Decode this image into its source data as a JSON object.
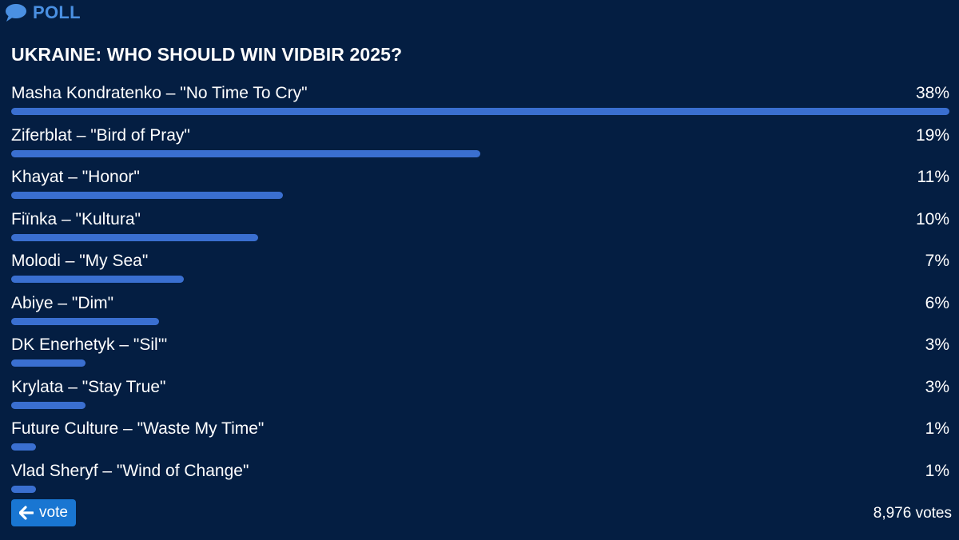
{
  "header": {
    "icon": "speech-bubble-icon",
    "label": "POLL",
    "accent_color": "#4a90e2"
  },
  "poll": {
    "question": "UKRAINE: WHO SHOULD WIN VIDBIR 2025?",
    "options": [
      {
        "label": "Masha Kondratenko – \"No Time To Cry\"",
        "percent": "38%",
        "value": 38
      },
      {
        "label": "Ziferblat – \"Bird of Pray\"",
        "percent": "19%",
        "value": 19
      },
      {
        "label": "Khayat – \"Honor\"",
        "percent": "11%",
        "value": 11
      },
      {
        "label": "Fiїnka – \"Kultura\"",
        "percent": "10%",
        "value": 10
      },
      {
        "label": "Molodi – \"My Sea\"",
        "percent": "7%",
        "value": 7
      },
      {
        "label": "Abiye – \"Dim\"",
        "percent": "6%",
        "value": 6
      },
      {
        "label": "DK Enerhetyk – \"Sil'\"",
        "percent": "3%",
        "value": 3
      },
      {
        "label": "Krylata – \"Stay True\"",
        "percent": "3%",
        "value": 3
      },
      {
        "label": "Future Culture – \"Waste My Time\"",
        "percent": "1%",
        "value": 1
      },
      {
        "label": "Vlad Sheryf – \"Wind of Change\"",
        "percent": "1%",
        "value": 1
      }
    ],
    "bar_color": "#3a6fd0"
  },
  "footer": {
    "vote_button": {
      "label": "vote",
      "icon": "arrow-left-icon",
      "color": "#1976d2"
    },
    "vote_count": "8,976 votes"
  },
  "colors": {
    "background": "#041e42",
    "text": "#ffffff"
  }
}
